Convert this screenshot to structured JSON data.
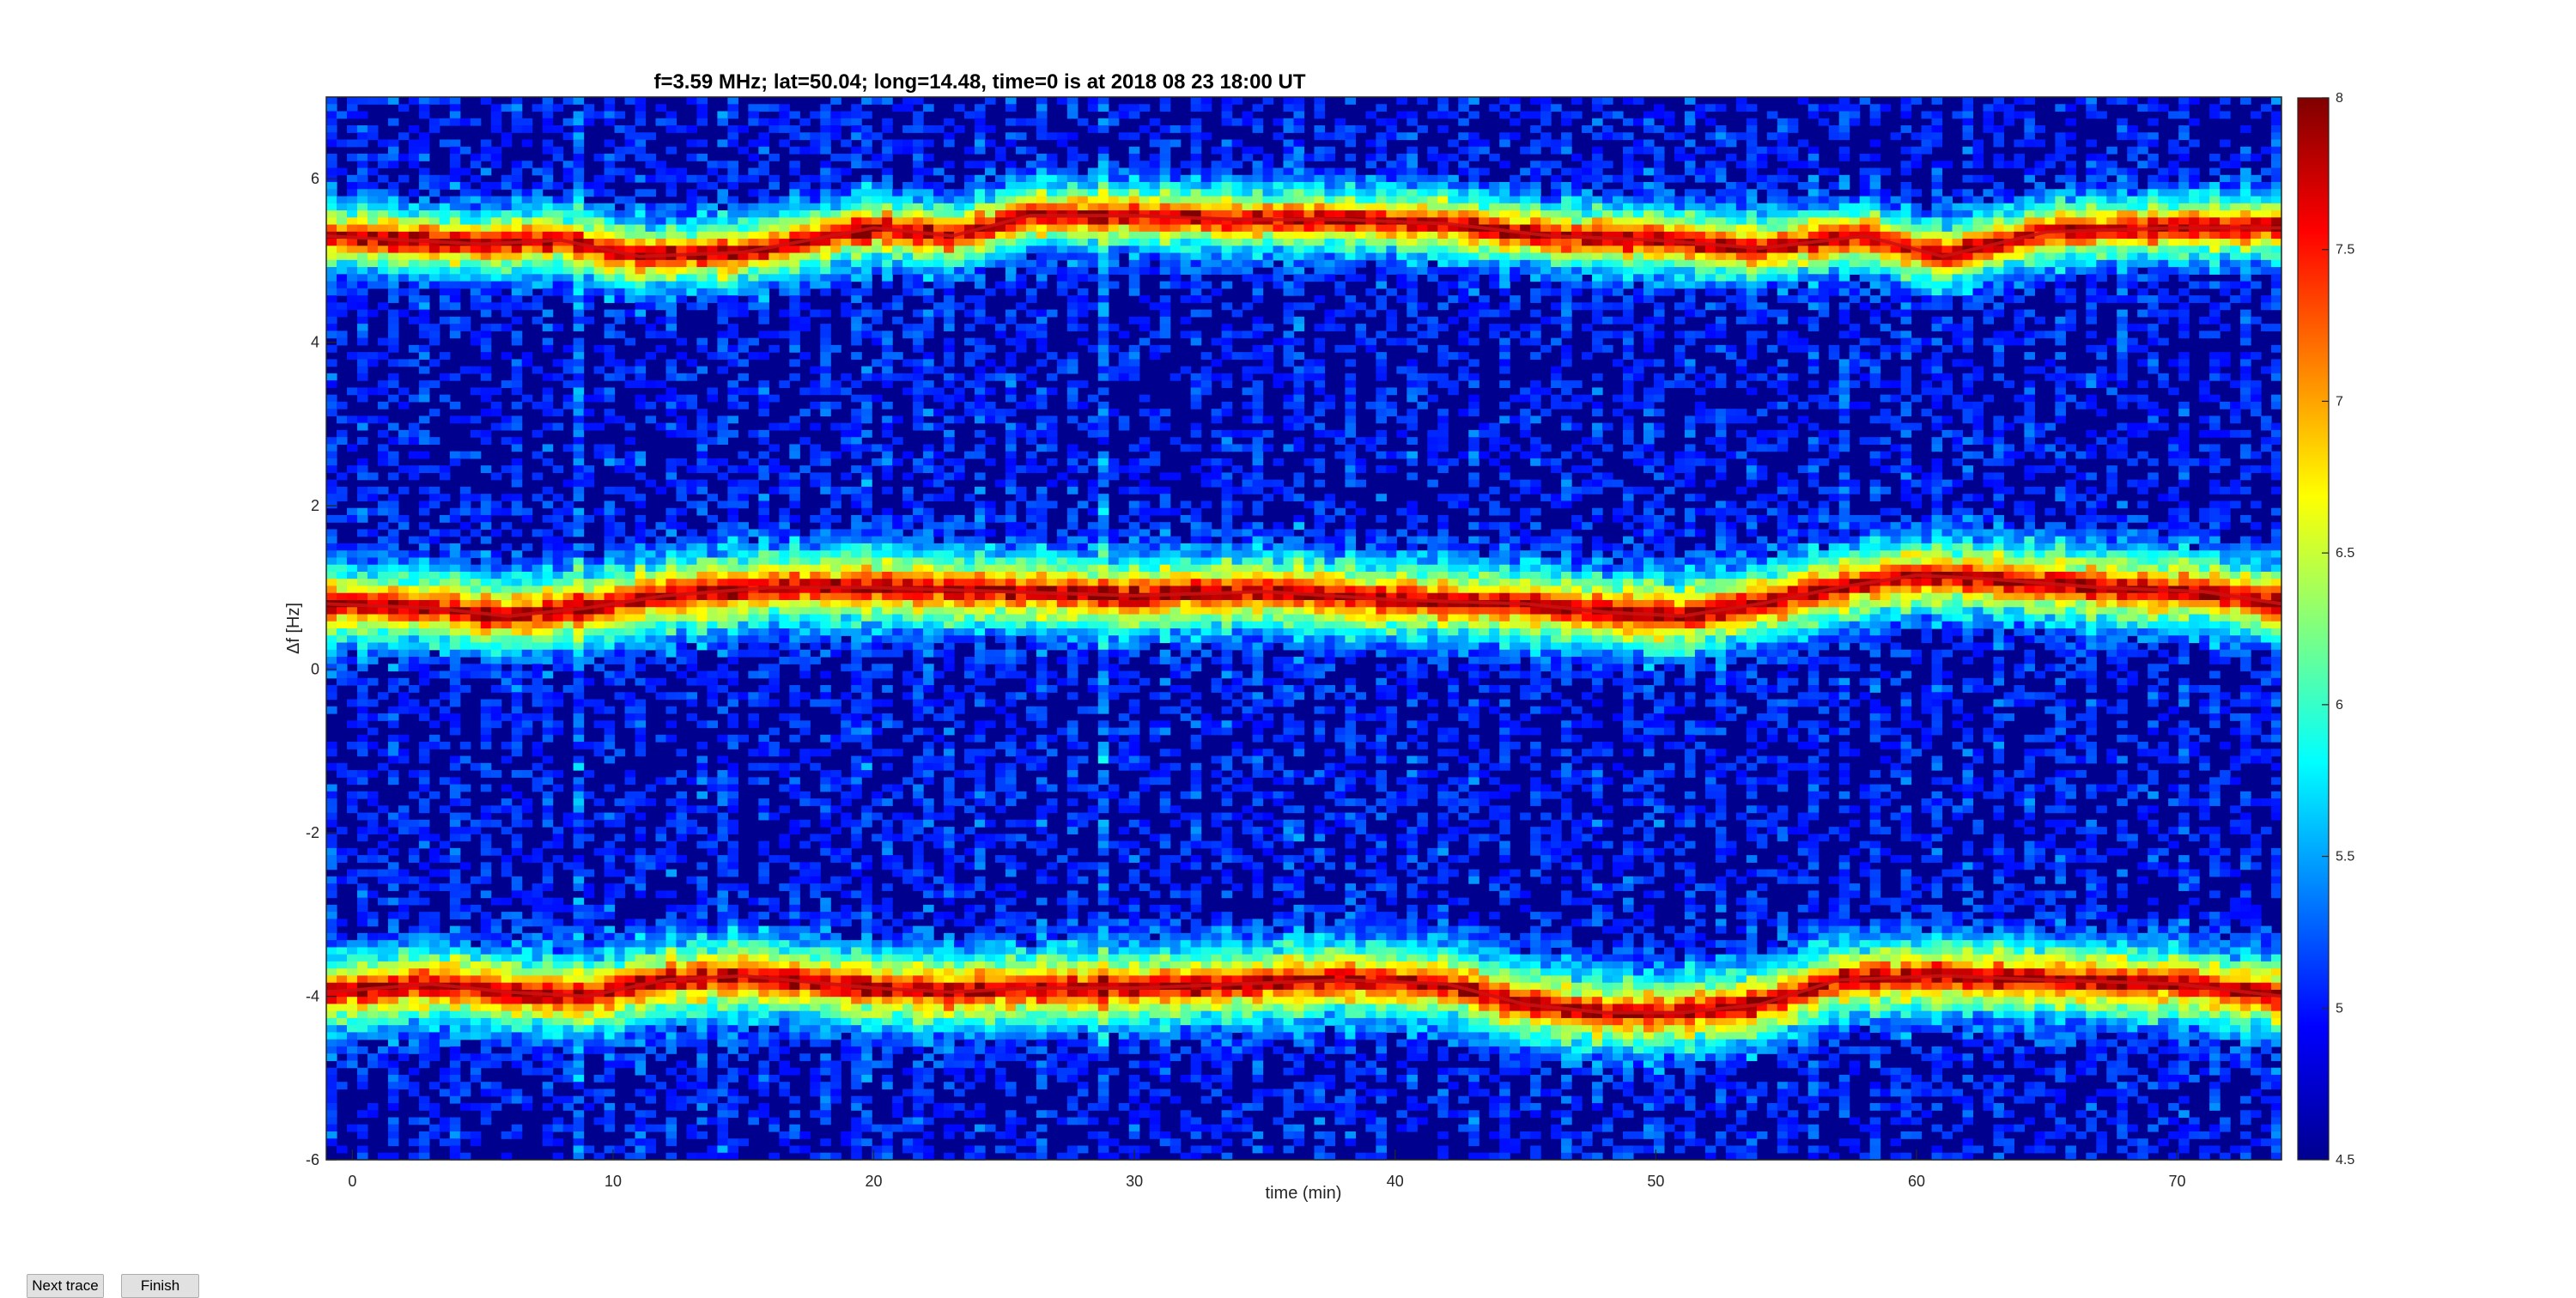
{
  "buttons": {
    "next_trace": "Next trace",
    "finish": "Finish"
  },
  "chart_data": {
    "type": "heatmap",
    "title": "f=3.59 MHz;  lat=50.04; long=14.48, time=0 is at 2018 08 23 18:00 UT",
    "xlabel": "time (min)",
    "ylabel": "Δf [Hz]",
    "xlim": [
      -1,
      74
    ],
    "ylim": [
      -6,
      7
    ],
    "xticks": [
      0,
      10,
      20,
      30,
      40,
      50,
      60,
      70
    ],
    "yticks": [
      -6,
      -4,
      -2,
      0,
      2,
      4,
      6
    ],
    "colorbar": {
      "colormap": "jet",
      "range": [
        4.5,
        8
      ],
      "ticks": [
        4.5,
        5,
        5.5,
        6,
        6.5,
        7,
        7.5,
        8
      ]
    },
    "traces": [
      {
        "t": [
          -1,
          2,
          5,
          8,
          11,
          15,
          20,
          23,
          26,
          30,
          34,
          38,
          42,
          46,
          50,
          54,
          58,
          61,
          65,
          70,
          74
        ],
        "df": [
          5.3,
          5.25,
          5.2,
          5.25,
          5.05,
          5.1,
          5.4,
          5.3,
          5.55,
          5.55,
          5.5,
          5.5,
          5.45,
          5.3,
          5.25,
          5.15,
          5.3,
          5.05,
          5.35,
          5.4,
          5.4
        ]
      },
      {
        "t": [
          -1,
          3,
          6,
          9,
          12,
          16,
          20,
          25,
          30,
          35,
          40,
          45,
          48,
          51,
          54,
          57,
          60,
          63,
          67,
          71,
          74
        ],
        "df": [
          0.8,
          0.75,
          0.65,
          0.75,
          0.9,
          1.0,
          1.0,
          0.95,
          0.9,
          0.95,
          0.85,
          0.8,
          0.7,
          0.65,
          0.8,
          1.0,
          1.15,
          1.1,
          1.0,
          0.95,
          0.8
        ]
      },
      {
        "t": [
          -1,
          3,
          6,
          9,
          12,
          15,
          20,
          23,
          26,
          30,
          34,
          38,
          42,
          45,
          48,
          51,
          54,
          57,
          61,
          65,
          70,
          74
        ],
        "df": [
          -3.95,
          -3.85,
          -3.95,
          -4.0,
          -3.8,
          -3.75,
          -3.9,
          -3.95,
          -3.9,
          -3.9,
          -3.85,
          -3.8,
          -3.85,
          -4.1,
          -4.2,
          -4.2,
          -4.1,
          -3.8,
          -3.75,
          -3.8,
          -3.85,
          -4.0
        ]
      }
    ]
  }
}
